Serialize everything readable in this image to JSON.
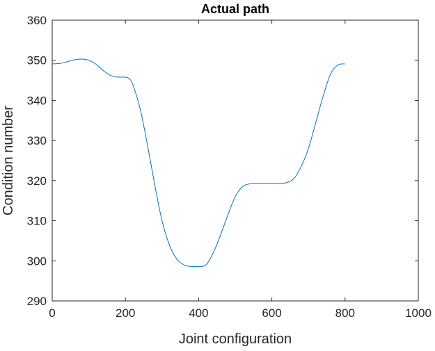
{
  "chart_data": {
    "type": "line",
    "title": "Actual path",
    "xlabel": "Joint configuration",
    "ylabel": "Condition number",
    "xlim": [
      0,
      1000
    ],
    "ylim": [
      290,
      360
    ],
    "xticks": [
      0,
      200,
      400,
      600,
      800,
      1000
    ],
    "yticks": [
      290,
      300,
      310,
      320,
      330,
      340,
      350,
      360
    ],
    "xtick_labels": [
      "0",
      "200",
      "400",
      "600",
      "800",
      "1000"
    ],
    "ytick_labels": [
      "290",
      "300",
      "310",
      "320",
      "330",
      "340",
      "350",
      "360"
    ],
    "grid": false,
    "series": [
      {
        "color": "#0072BD",
        "x": [
          0,
          20,
          40,
          60,
          80,
          100,
          120,
          140,
          160,
          180,
          200,
          210,
          220,
          240,
          260,
          280,
          300,
          320,
          340,
          360,
          380,
          400,
          420,
          440,
          460,
          480,
          500,
          520,
          540,
          560,
          580,
          600,
          620,
          640,
          660,
          680,
          700,
          720,
          740,
          760,
          780,
          800
        ],
        "y": [
          349.1,
          349.2,
          349.6,
          350.1,
          350.3,
          350.0,
          349.0,
          347.4,
          346.2,
          345.8,
          345.8,
          345.4,
          344.0,
          338.0,
          329.0,
          319.0,
          310.0,
          304.0,
          300.5,
          299.0,
          298.6,
          298.6,
          299.0,
          302.0,
          306.5,
          311.5,
          316.0,
          318.5,
          319.2,
          319.3,
          319.3,
          319.3,
          319.3,
          319.5,
          320.5,
          323.5,
          328.0,
          334.5,
          341.0,
          346.5,
          348.8,
          349.1
        ]
      }
    ]
  }
}
